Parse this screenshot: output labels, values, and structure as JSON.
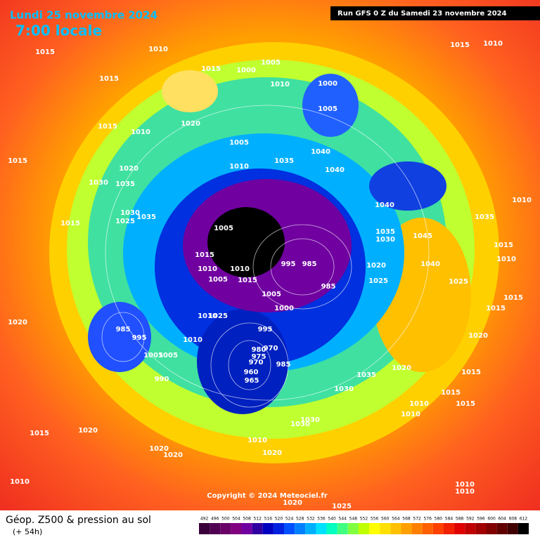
{
  "header": {
    "date": "Lundi 25 novembre 2024",
    "time": "7:00 locale",
    "run": "Run GFS 0 Z du Samedi 23 novembre 2024"
  },
  "isobar_labels": [
    "1015",
    "1010",
    "1015",
    "1015",
    "1000",
    "1005",
    "1010",
    "1000",
    "1005",
    "1015",
    "1010",
    "1015",
    "1010",
    "1020",
    "1005",
    "1040",
    "1035",
    "1040",
    "1015",
    "1020",
    "1010",
    "1030",
    "1035",
    "1040",
    "1010",
    "1035",
    "1030",
    "1025",
    "1035",
    "1015",
    "1005",
    "1035",
    "1030",
    "1045",
    "1015",
    "1010",
    "1015",
    "995",
    "985",
    "1010",
    "1010",
    "1005",
    "1015",
    "1020",
    "1040",
    "985",
    "1025",
    "1025",
    "1005",
    "1015",
    "1000",
    "1020",
    "1015",
    "985",
    "995",
    "1010",
    "1025",
    "995",
    "1010",
    "1020",
    "980",
    "970",
    "975",
    "970",
    "1005",
    "1005",
    "985",
    "960",
    "965",
    "990",
    "1020",
    "1015",
    "1035",
    "1030",
    "1015",
    "1010",
    "1015",
    "1010",
    "1030",
    "1030",
    "1015",
    "1020",
    "1010",
    "1020",
    "1020",
    "1020",
    "1010",
    "1010",
    "1010",
    "1020",
    "1025"
  ],
  "footer": {
    "copyright": "Copyright © 2024 Meteociel.fr"
  },
  "legend": {
    "title": "Géop. Z500 & pression au sol",
    "subtitle": "(+ 54h)",
    "scale": [
      492,
      496,
      500,
      504,
      508,
      512,
      516,
      520,
      524,
      528,
      532,
      536,
      540,
      544,
      548,
      552,
      556,
      560,
      564,
      568,
      572,
      576,
      580,
      584,
      588,
      592,
      596,
      600,
      604,
      608,
      612
    ],
    "colors": [
      "#3a003a",
      "#500050",
      "#680068",
      "#800080",
      "#7000a0",
      "#3000a0",
      "#0000c0",
      "#0020e0",
      "#0050ff",
      "#0080ff",
      "#00b0ff",
      "#00e0ff",
      "#00ffc0",
      "#40ff80",
      "#80ff40",
      "#c0ff00",
      "#ffff00",
      "#ffe000",
      "#ffc000",
      "#ffa000",
      "#ff8000",
      "#ff6000",
      "#ff4000",
      "#f02000",
      "#e00000",
      "#c00000",
      "#a00000",
      "#800000",
      "#600000",
      "#400000",
      "#000000"
    ]
  }
}
